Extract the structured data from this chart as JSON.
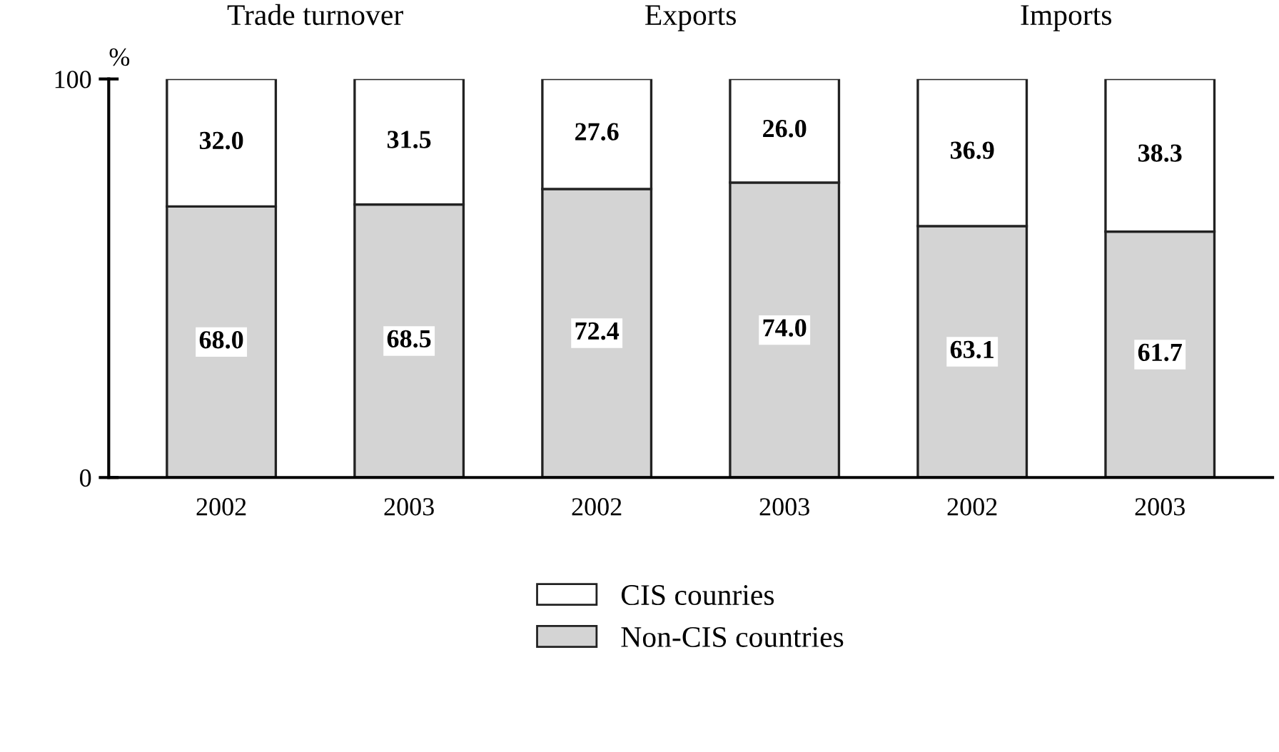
{
  "chart_data": {
    "type": "bar",
    "stacked": true,
    "categories": [
      "2002",
      "2003",
      "2002",
      "2003",
      "2002",
      "2003"
    ],
    "series": [
      {
        "name": "Non-CIS countries",
        "color": "#d4d4d4",
        "values": [
          68.0,
          68.5,
          72.4,
          74.0,
          63.1,
          61.7
        ],
        "value_labels": [
          "68.0",
          "68.5",
          "72.4",
          "74.0",
          "63.1",
          "61.7"
        ]
      },
      {
        "name": "CIS counries",
        "color": "#ffffff",
        "values": [
          32.0,
          31.5,
          27.6,
          26.0,
          36.9,
          38.3
        ],
        "value_labels": [
          "32.0",
          "31.5",
          "27.6",
          "26.0",
          "36.9",
          "38.3"
        ]
      }
    ],
    "annotations": [
      "Trade turnover",
      "Exports",
      "Imports"
    ],
    "ylabel": "%",
    "ylim": [
      0,
      100
    ],
    "yticks": [
      0,
      100
    ],
    "legend": "bottom",
    "grid": false
  }
}
